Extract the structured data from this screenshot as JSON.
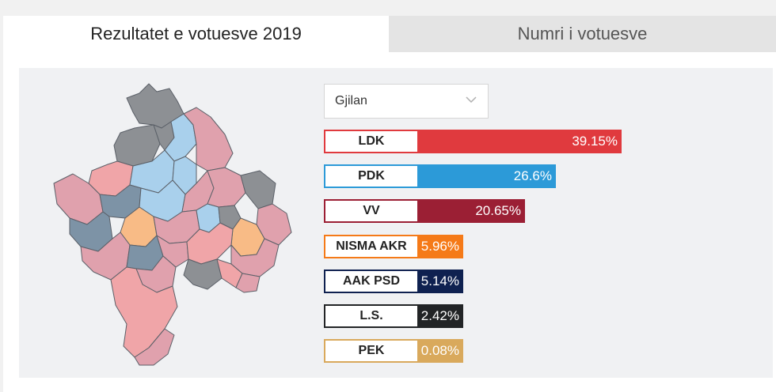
{
  "tabs": {
    "active": "Rezultatet e votuesve 2019",
    "inactive": "Numri i votuesve"
  },
  "filter": {
    "selected": "Gjilan"
  },
  "colors": {
    "ldk": "#e03a3e",
    "pdk": "#2c9ad8",
    "vv": "#9b1f34",
    "nisma": "#f57a18",
    "aak": "#0f2150",
    "ls": "#222426",
    "pek": "#d9a95c",
    "map_ldk": "#f0a5a8",
    "map_pdk": "#a9d0ec",
    "map_vv": "#e0a1ad",
    "map_nisma": "#f8bb86",
    "map_aak": "#7d93a6",
    "map_ls": "#8d9094",
    "map_selected": "#b5adc3"
  },
  "chart_data": {
    "type": "bar",
    "orientation": "horizontal",
    "title": "Rezultatet e votuesve 2019",
    "subtitle": "Gjilan",
    "categories": [
      "LDK",
      "PDK",
      "VV",
      "NISMA AKR",
      "AAK PSD",
      "L.S.",
      "PEK"
    ],
    "values": [
      39.15,
      26.6,
      20.65,
      5.96,
      5.14,
      2.42,
      0.08
    ],
    "labels": [
      "39.15%",
      "26.6%",
      "20.65%",
      "5.96%",
      "5.14%",
      "2.42%",
      "0.08%"
    ],
    "unit": "%",
    "xlim": [
      0,
      100
    ],
    "grid": false,
    "legend": "none"
  }
}
